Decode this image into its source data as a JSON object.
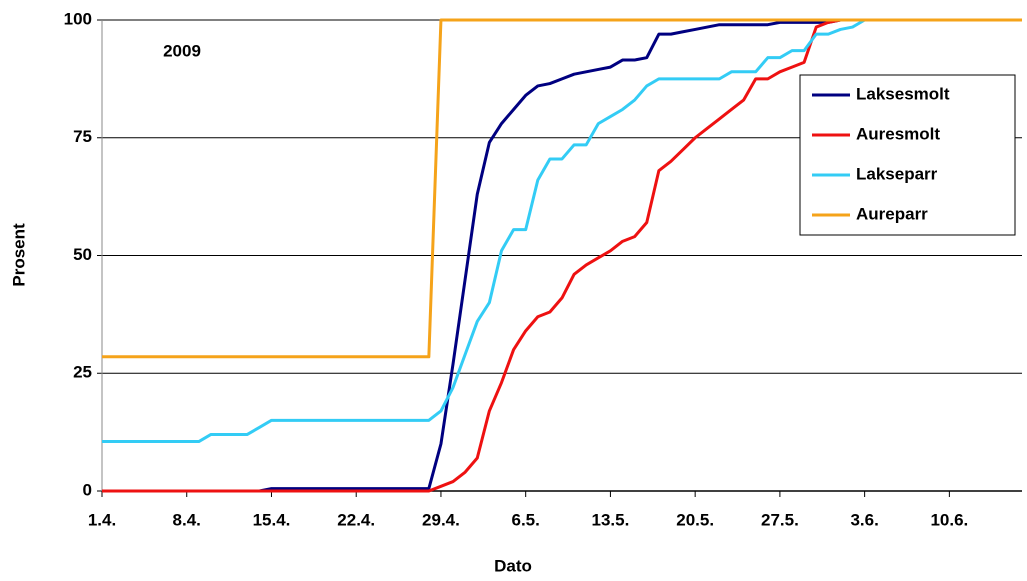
{
  "chart_data": {
    "type": "line",
    "annotation": "2009",
    "xlabel": "Dato",
    "ylabel": "Prosent",
    "x": [
      0,
      1,
      2,
      3,
      4,
      5,
      6,
      7,
      8,
      9,
      10,
      11,
      12,
      13,
      14,
      15,
      16,
      17,
      18,
      19,
      20,
      21,
      22,
      23,
      24,
      25,
      26,
      27,
      28,
      29,
      30,
      31,
      32,
      33,
      34,
      35,
      36,
      37,
      38,
      39,
      40,
      41,
      42,
      43,
      44,
      45,
      46,
      47,
      48,
      49,
      50,
      51,
      52,
      53,
      54,
      55,
      56,
      57,
      58,
      59,
      60,
      61,
      62,
      63,
      64,
      65,
      66,
      67,
      68,
      69,
      70,
      71,
      72,
      73,
      74,
      75,
      76
    ],
    "xlim": [
      0,
      76
    ],
    "xticks": [
      {
        "value": 0,
        "label": "1.4."
      },
      {
        "value": 7,
        "label": "8.4."
      },
      {
        "value": 14,
        "label": "15.4."
      },
      {
        "value": 21,
        "label": "22.4."
      },
      {
        "value": 28,
        "label": "29.4."
      },
      {
        "value": 35,
        "label": "6.5."
      },
      {
        "value": 42,
        "label": "13.5."
      },
      {
        "value": 49,
        "label": "20.5."
      },
      {
        "value": 56,
        "label": "27.5."
      },
      {
        "value": 63,
        "label": "3.6."
      },
      {
        "value": 70,
        "label": "10.6."
      }
    ],
    "ylim": [
      0,
      100
    ],
    "yticks": [
      0,
      25,
      50,
      75,
      100
    ],
    "grid": true,
    "legend": "right",
    "series": [
      {
        "name": "Laksesmolt",
        "color": "#000080",
        "values": [
          0,
          0,
          0,
          0,
          0,
          0,
          0,
          0,
          0,
          0,
          0,
          0,
          0,
          0,
          0.5,
          0.5,
          0.5,
          0.5,
          0.5,
          0.5,
          0.5,
          0.5,
          0.5,
          0.5,
          0.5,
          0.5,
          0.5,
          0.5,
          10,
          27,
          45,
          63,
          74,
          78,
          81,
          84,
          86,
          86.5,
          87.5,
          88.5,
          89,
          89.5,
          90,
          91.5,
          91.5,
          92,
          97,
          97,
          97.5,
          98,
          98.5,
          99,
          99,
          99,
          99,
          99,
          99.5,
          99.5,
          99.5,
          99.5,
          99.5,
          100,
          100,
          100,
          100,
          100,
          100,
          100,
          100,
          100,
          100,
          100,
          100,
          100,
          100,
          100,
          100
        ]
      },
      {
        "name": "Auresmolt",
        "color": "#ee1111",
        "values": [
          0,
          0,
          0,
          0,
          0,
          0,
          0,
          0,
          0,
          0,
          0,
          0,
          0,
          0,
          0,
          0,
          0,
          0,
          0,
          0,
          0,
          0,
          0,
          0,
          0,
          0,
          0,
          0,
          1,
          2,
          4,
          7,
          17,
          23,
          30,
          34,
          37,
          38,
          41,
          46,
          48,
          49.5,
          51,
          53,
          54,
          57,
          68,
          70,
          72.5,
          75,
          77,
          79,
          81,
          83,
          87.5,
          87.5,
          89,
          90,
          91,
          98.5,
          99.5,
          100,
          100,
          100,
          100,
          100,
          100,
          100,
          100,
          100,
          100,
          100,
          100,
          100,
          100,
          100,
          100
        ]
      },
      {
        "name": "Lakseparr",
        "color": "#33ccf5",
        "values": [
          10.5,
          10.5,
          10.5,
          10.5,
          10.5,
          10.5,
          10.5,
          10.5,
          10.5,
          12,
          12,
          12,
          12,
          13.5,
          15,
          15,
          15,
          15,
          15,
          15,
          15,
          15,
          15,
          15,
          15,
          15,
          15,
          15,
          17,
          22,
          29,
          36,
          40,
          51,
          55.5,
          55.5,
          66,
          70.5,
          70.5,
          73.5,
          73.5,
          78,
          79.5,
          81,
          83,
          86,
          87.5,
          87.5,
          87.5,
          87.5,
          87.5,
          87.5,
          89,
          89,
          89,
          92,
          92,
          93.5,
          93.5,
          97,
          97,
          98,
          98.5,
          100,
          100,
          100,
          100,
          100,
          100,
          100,
          100,
          100,
          100,
          100,
          100,
          100,
          100
        ]
      },
      {
        "name": "Aureparr",
        "color": "#f5a31a",
        "values": [
          28.5,
          28.5,
          28.5,
          28.5,
          28.5,
          28.5,
          28.5,
          28.5,
          28.5,
          28.5,
          28.5,
          28.5,
          28.5,
          28.5,
          28.5,
          28.5,
          28.5,
          28.5,
          28.5,
          28.5,
          28.5,
          28.5,
          28.5,
          28.5,
          28.5,
          28.5,
          28.5,
          28.5,
          100,
          100,
          100,
          100,
          100,
          100,
          100,
          100,
          100,
          100,
          100,
          100,
          100,
          100,
          100,
          100,
          100,
          100,
          100,
          100,
          100,
          100,
          100,
          100,
          100,
          100,
          100,
          100,
          100,
          100,
          100,
          100,
          100,
          100,
          100,
          100,
          100,
          100,
          100,
          100,
          100,
          100,
          100,
          100,
          100,
          100,
          100,
          100,
          100
        ]
      }
    ]
  }
}
